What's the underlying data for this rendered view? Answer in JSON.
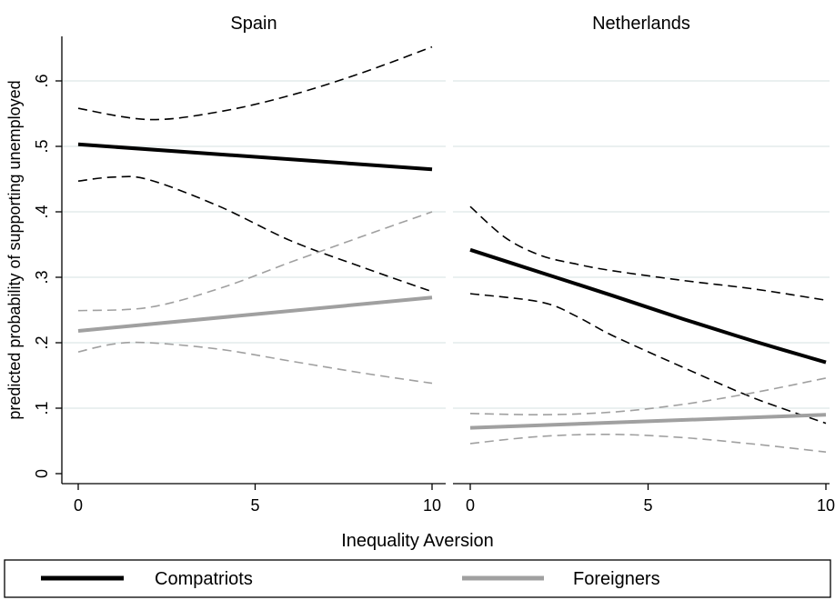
{
  "chart_data": {
    "type": "line",
    "ylabel": "predicted probability of supporting unemployed",
    "xlabel": "Inequality Aversion",
    "yticks": [
      {
        "v": 0,
        "label": "0"
      },
      {
        "v": 0.1,
        "label": ".1"
      },
      {
        "v": 0.2,
        "label": ".2"
      },
      {
        "v": 0.3,
        "label": ".3"
      },
      {
        "v": 0.4,
        "label": ".4"
      },
      {
        "v": 0.5,
        "label": ".5"
      },
      {
        "v": 0.6,
        "label": ".6"
      }
    ],
    "xticks": [
      {
        "v": 0,
        "label": "0"
      },
      {
        "v": 5,
        "label": "5"
      },
      {
        "v": 10,
        "label": "10"
      }
    ],
    "xlim": [
      0,
      10
    ],
    "ylim": [
      0,
      0.6
    ],
    "grid": true,
    "legend_position": "bottom",
    "legend": [
      {
        "label": "Compatriots",
        "color": "#000000"
      },
      {
        "label": "Foreigners",
        "color": "#a0a0a0"
      }
    ],
    "panels": [
      {
        "title": "Spain",
        "series": [
          {
            "name": "Compatriots",
            "color": "#000000",
            "style": "solid",
            "x": [
              0,
              10
            ],
            "y": [
              0.503,
              0.465
            ]
          },
          {
            "name": "Compatriots",
            "color": "#000000",
            "style": "dashed",
            "x": [
              0,
              2,
              4,
              6,
              8,
              10
            ],
            "y": [
              0.558,
              0.541,
              0.553,
              0.578,
              0.612,
              0.652
            ]
          },
          {
            "name": "Compatriots",
            "color": "#000000",
            "style": "dashed",
            "x": [
              0,
              1,
              2,
              4,
              6,
              8,
              10
            ],
            "y": [
              0.447,
              0.453,
              0.449,
              0.408,
              0.356,
              0.316,
              0.278
            ]
          },
          {
            "name": "Foreigners",
            "color": "#a0a0a0",
            "style": "solid",
            "x": [
              0,
              10
            ],
            "y": [
              0.218,
              0.269
            ]
          },
          {
            "name": "Foreigners",
            "color": "#a0a0a0",
            "style": "dashed",
            "x": [
              0,
              2,
              4,
              6,
              8,
              10
            ],
            "y": [
              0.249,
              0.254,
              0.283,
              0.323,
              0.362,
              0.4
            ]
          },
          {
            "name": "Foreigners",
            "color": "#a0a0a0",
            "style": "dashed",
            "x": [
              0,
              1,
              2,
              4,
              6,
              8,
              10
            ],
            "y": [
              0.186,
              0.198,
              0.2,
              0.19,
              0.172,
              0.154,
              0.138
            ]
          }
        ]
      },
      {
        "title": "Netherlands",
        "series": [
          {
            "name": "Compatriots",
            "color": "#000000",
            "style": "solid",
            "x": [
              0,
              2,
              4,
              6,
              8,
              10
            ],
            "y": [
              0.342,
              0.307,
              0.272,
              0.236,
              0.202,
              0.17
            ]
          },
          {
            "name": "Compatriots",
            "color": "#000000",
            "style": "dashed",
            "x": [
              0,
              1,
              2,
              3,
              4,
              6,
              8,
              10
            ],
            "y": [
              0.408,
              0.36,
              0.333,
              0.32,
              0.31,
              0.295,
              0.282,
              0.265
            ]
          },
          {
            "name": "Compatriots",
            "color": "#000000",
            "style": "dashed",
            "x": [
              0,
              2,
              3,
              4,
              6,
              8,
              10
            ],
            "y": [
              0.275,
              0.262,
              0.24,
              0.211,
              0.162,
              0.115,
              0.077
            ]
          },
          {
            "name": "Foreigners",
            "color": "#a0a0a0",
            "style": "solid",
            "x": [
              0,
              10
            ],
            "y": [
              0.07,
              0.09
            ]
          },
          {
            "name": "Foreigners",
            "color": "#a0a0a0",
            "style": "dashed",
            "x": [
              0,
              2,
              4,
              6,
              8,
              10
            ],
            "y": [
              0.092,
              0.09,
              0.094,
              0.106,
              0.124,
              0.146
            ]
          },
          {
            "name": "Foreigners",
            "color": "#a0a0a0",
            "style": "dashed",
            "x": [
              0,
              2,
              4,
              6,
              8,
              10
            ],
            "y": [
              0.046,
              0.057,
              0.06,
              0.055,
              0.045,
              0.033
            ]
          }
        ]
      }
    ]
  }
}
